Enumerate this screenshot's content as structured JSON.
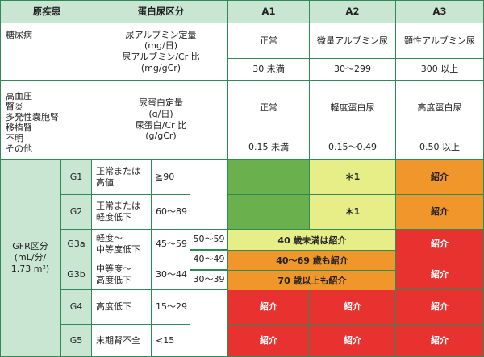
{
  "header": {
    "disease": "原疾患",
    "protein_category": "蛋白尿区分",
    "a1": "A1",
    "a2": "A2",
    "a3": "A3"
  },
  "diabetes": {
    "name": "糖尿病",
    "measure_line1": "尿アルブミン定量",
    "measure_line2": "(mg/日)",
    "measure_line3": "尿アルブミン/Cr 比",
    "measure_line4": "(mg/gCr)",
    "a1_label": "正常",
    "a2_label": "微量アルブミン尿",
    "a3_label": "顕性アルブミン尿",
    "a1_value": "30 未満",
    "a2_value": "30～299",
    "a3_value": "300 以上"
  },
  "other_diseases": {
    "names": [
      "高血圧",
      "腎炎",
      "多発性嚢胞腎",
      "移植腎",
      "不明",
      "その他"
    ],
    "measure_line1": "尿蛋白定量",
    "measure_line2": "(g/日)",
    "measure_line3": "尿蛋白/Cr 比",
    "measure_line4": "(g/gCr)",
    "a1_label": "正常",
    "a2_label": "軽度蛋白尿",
    "a3_label": "高度蛋白尿",
    "a1_value": "0.15 未満",
    "a2_value": "0.15～0.49",
    "a3_value": "0.50 以上"
  },
  "gfr": {
    "title_line1": "GFR区分",
    "title_line2": "(mL/分/",
    "title_line3": "1.73 m²)",
    "rows": [
      {
        "grade": "G1",
        "desc_line1": "正常または",
        "desc_line2": "高値",
        "range": "≧90"
      },
      {
        "grade": "G2",
        "desc_line1": "正常または",
        "desc_line2": "軽度低下",
        "range": "60～89"
      },
      {
        "grade": "G3a",
        "desc_line1": "軽度～",
        "desc_line2": "中等度低下",
        "range": "45～59"
      },
      {
        "grade": "G3b",
        "desc_line1": "中等度～",
        "desc_line2": "高度低下",
        "range": "30～44"
      },
      {
        "grade": "G4",
        "desc_line1": "高度低下",
        "desc_line2": "",
        "range": "15～29"
      },
      {
        "grade": "G5",
        "desc_line1": "末期腎不全",
        "desc_line2": "",
        "range": "<15"
      }
    ],
    "subranges": [
      "50～59",
      "40～49",
      "30～39"
    ],
    "cells": {
      "g1_a2": "＊1",
      "g1_a3": "紹介",
      "g2_a2": "＊1",
      "g2_a3": "紹介",
      "g3a_a3": "紹介",
      "g3b_a3": "紹介",
      "g4_a1": "紹介",
      "g4_a2": "紹介",
      "g4_a3": "紹介",
      "g5_a1": "紹介",
      "g5_a2": "紹介",
      "g5_a3": "紹介"
    },
    "age_notes": [
      "40 歳未満は紹介",
      "40～69 歳も紹介",
      "70 歳以上も紹介"
    ]
  },
  "colors": {
    "header_green": "#c9e6d2",
    "border_green": "#2e8b57",
    "green": "#6ab04c",
    "yellow": "#e7ee88",
    "orange": "#f0962a",
    "red": "#e8322f"
  }
}
